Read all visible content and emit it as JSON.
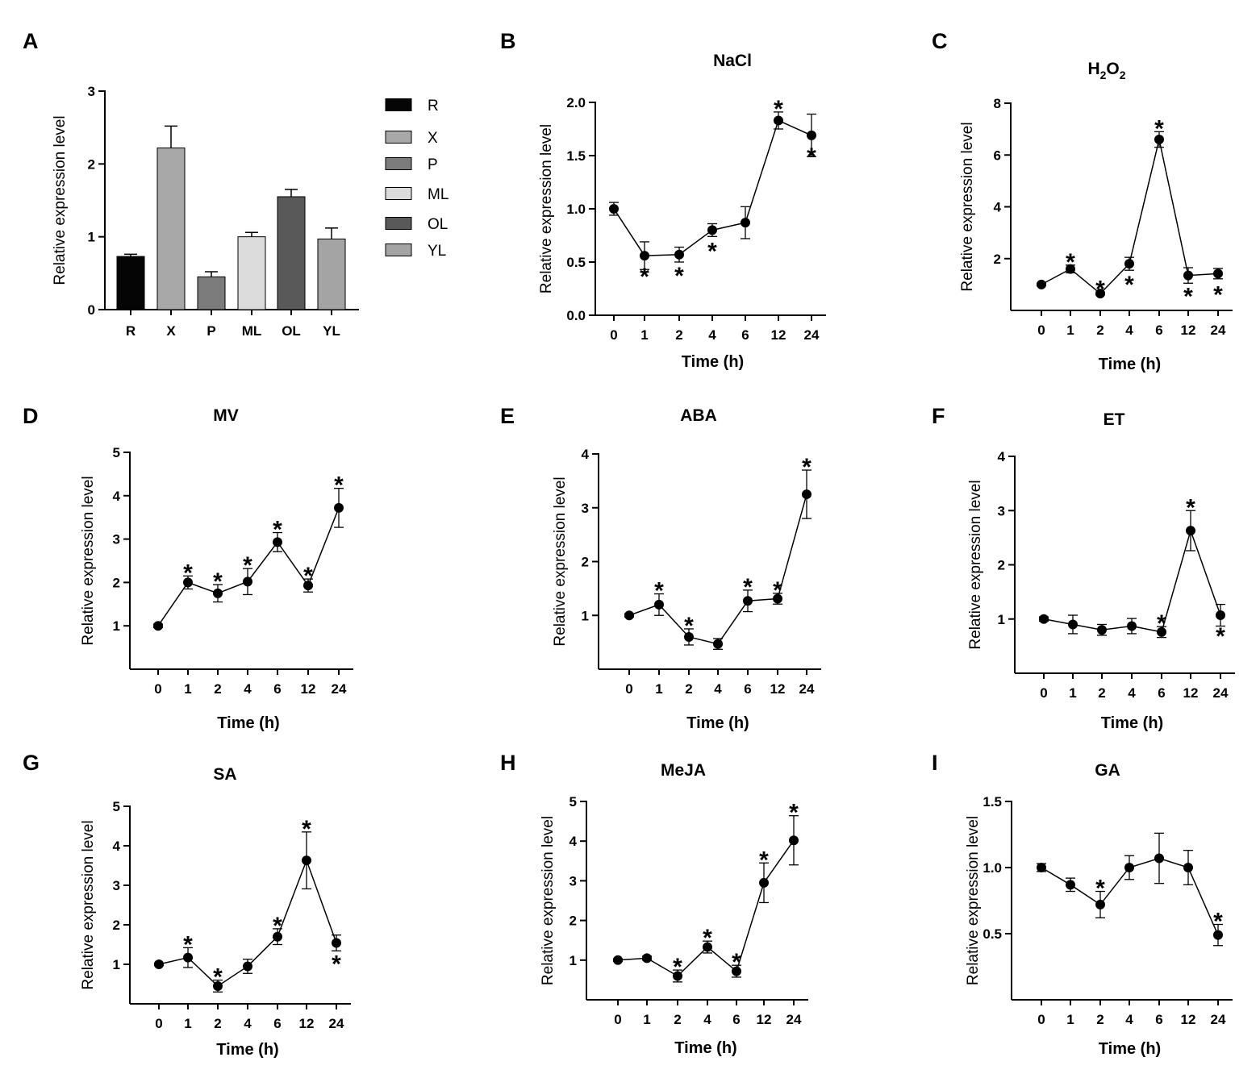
{
  "figure": {
    "y_axis_label": "Relative expression level",
    "x_axis_label": "Time (h)"
  },
  "chart_data": [
    {
      "panel": "A",
      "type": "bar",
      "title": "",
      "ylabel": "Relative expression level",
      "xlabel": "",
      "categories": [
        "R",
        "X",
        "P",
        "ML",
        "OL",
        "YL"
      ],
      "values": [
        0.73,
        2.22,
        0.45,
        1.0,
        1.55,
        0.97
      ],
      "errors": [
        0.03,
        0.3,
        0.07,
        0.06,
        0.1,
        0.15
      ],
      "colors": [
        "#050505",
        "#a8a8a8",
        "#7c7c7c",
        "#dcdcdc",
        "#595959",
        "#a4a4a4"
      ],
      "ylim": [
        0,
        3
      ],
      "yticks": [
        0,
        1,
        2,
        3
      ],
      "legend": [
        "R",
        "X",
        "P",
        "ML",
        "OL",
        "YL"
      ],
      "legend_position": "right"
    },
    {
      "panel": "B",
      "type": "line",
      "title": "NaCl",
      "ylabel": "Relative expression level",
      "xlabel": "Time (h)",
      "x": [
        "0",
        "1",
        "2",
        "4",
        "6",
        "12",
        "24"
      ],
      "values": [
        1.0,
        0.56,
        0.57,
        0.8,
        0.87,
        1.83,
        1.69
      ],
      "errors": [
        0.06,
        0.13,
        0.07,
        0.06,
        0.15,
        0.08,
        0.2
      ],
      "significant": [
        false,
        true,
        true,
        true,
        false,
        true,
        true
      ],
      "star_side": [
        "",
        "below",
        "below",
        "below",
        "",
        "above",
        "below"
      ],
      "ylim": [
        0,
        2
      ],
      "yticks": [
        "0.0",
        "0.5",
        "1.0",
        "1.5",
        "2.0"
      ]
    },
    {
      "panel": "C",
      "type": "line",
      "title": "H2O2",
      "title_main": "H",
      "title_sub1": "2",
      "title_mid": "O",
      "title_sub2": "2",
      "ylabel": "Relative expression level",
      "xlabel": "Time (h)",
      "x": [
        "0",
        "1",
        "2",
        "4",
        "6",
        "12",
        "24"
      ],
      "values": [
        1.0,
        1.6,
        0.65,
        1.8,
        6.6,
        1.35,
        1.42
      ],
      "errors": [
        0.05,
        0.15,
        0.05,
        0.25,
        0.3,
        0.3,
        0.2
      ],
      "significant": [
        false,
        true,
        true,
        true,
        true,
        true,
        true
      ],
      "star_side": [
        "",
        "above",
        "above",
        "below",
        "above",
        "below",
        "below"
      ],
      "ylim": [
        0,
        8
      ],
      "yticks": [
        "2",
        "4",
        "6",
        "8"
      ]
    },
    {
      "panel": "D",
      "type": "line",
      "title": "MV",
      "ylabel": "Relative expression level",
      "xlabel": "Time (h)",
      "x": [
        "0",
        "1",
        "2",
        "4",
        "6",
        "12",
        "24"
      ],
      "values": [
        1.0,
        2.0,
        1.75,
        2.02,
        2.93,
        1.93,
        3.72
      ],
      "errors": [
        0.04,
        0.15,
        0.2,
        0.3,
        0.22,
        0.15,
        0.45
      ],
      "significant": [
        false,
        true,
        true,
        true,
        true,
        true,
        true
      ],
      "star_side": [
        "",
        "above",
        "above",
        "above",
        "above",
        "above",
        "above"
      ],
      "ylim": [
        0,
        5
      ],
      "yticks": [
        "1",
        "2",
        "3",
        "4",
        "5"
      ]
    },
    {
      "panel": "E",
      "type": "line",
      "title": "ABA",
      "ylabel": "Relative expression level",
      "xlabel": "Time (h)",
      "x": [
        "0",
        "1",
        "2",
        "4",
        "6",
        "12",
        "24"
      ],
      "values": [
        1.0,
        1.2,
        0.6,
        0.47,
        1.27,
        1.31,
        3.25
      ],
      "errors": [
        0.03,
        0.2,
        0.15,
        0.1,
        0.2,
        0.1,
        0.45
      ],
      "significant": [
        false,
        true,
        true,
        false,
        true,
        true,
        true
      ],
      "star_side": [
        "",
        "above",
        "above",
        "",
        "above",
        "above",
        "above"
      ],
      "ylim": [
        0,
        4
      ],
      "yticks": [
        "1",
        "2",
        "3",
        "4"
      ]
    },
    {
      "panel": "F",
      "type": "line",
      "title": "ET",
      "ylabel": "Relative expression level",
      "xlabel": "Time (h)",
      "x": [
        "0",
        "1",
        "2",
        "4",
        "6",
        "12",
        "24"
      ],
      "values": [
        1.0,
        0.9,
        0.8,
        0.87,
        0.76,
        2.63,
        1.07
      ],
      "errors": [
        0.04,
        0.17,
        0.1,
        0.14,
        0.1,
        0.37,
        0.2
      ],
      "significant": [
        false,
        false,
        false,
        false,
        true,
        true,
        true
      ],
      "star_side": [
        "",
        "",
        "",
        "",
        "above",
        "above",
        "below"
      ],
      "ylim": [
        0,
        4
      ],
      "yticks": [
        "1",
        "2",
        "3",
        "4"
      ]
    },
    {
      "panel": "G",
      "type": "line",
      "title": "SA",
      "ylabel": "Relative expression level",
      "xlabel": "Time (h)",
      "x": [
        "0",
        "1",
        "2",
        "4",
        "6",
        "12",
        "24"
      ],
      "values": [
        1.0,
        1.17,
        0.45,
        0.95,
        1.7,
        3.63,
        1.54
      ],
      "errors": [
        0.03,
        0.25,
        0.15,
        0.18,
        0.2,
        0.72,
        0.2
      ],
      "significant": [
        false,
        true,
        true,
        false,
        true,
        true,
        true
      ],
      "star_side": [
        "",
        "above",
        "above",
        "",
        "above",
        "above",
        "below"
      ],
      "ylim": [
        0,
        5
      ],
      "yticks": [
        "1",
        "2",
        "3",
        "4",
        "5"
      ]
    },
    {
      "panel": "H",
      "type": "line",
      "title": "MeJA",
      "ylabel": "Relative expression level",
      "xlabel": "Time (h)",
      "x": [
        "0",
        "1",
        "2",
        "4",
        "6",
        "12",
        "24"
      ],
      "values": [
        1.0,
        1.05,
        0.6,
        1.33,
        0.72,
        2.95,
        4.02
      ],
      "errors": [
        0.03,
        0.05,
        0.15,
        0.15,
        0.15,
        0.5,
        0.62
      ],
      "significant": [
        false,
        false,
        true,
        true,
        true,
        true,
        true
      ],
      "star_side": [
        "",
        "",
        "above",
        "above",
        "above",
        "above",
        "above"
      ],
      "ylim": [
        0,
        5
      ],
      "yticks": [
        "1",
        "2",
        "3",
        "4",
        "5"
      ]
    },
    {
      "panel": "I",
      "type": "line",
      "title": "GA",
      "ylabel": "Relative expression level",
      "xlabel": "Time (h)",
      "x": [
        "0",
        "1",
        "2",
        "4",
        "6",
        "12",
        "24"
      ],
      "values": [
        1.0,
        0.87,
        0.72,
        1.0,
        1.07,
        1.0,
        0.49
      ],
      "errors": [
        0.03,
        0.05,
        0.1,
        0.09,
        0.19,
        0.13,
        0.08
      ],
      "significant": [
        false,
        false,
        true,
        false,
        false,
        false,
        true
      ],
      "star_side": [
        "",
        "",
        "above",
        "",
        "",
        "",
        "above"
      ],
      "ylim": [
        0,
        1.5
      ],
      "yticks": [
        "0.5",
        "1.0",
        "1.5"
      ]
    }
  ]
}
